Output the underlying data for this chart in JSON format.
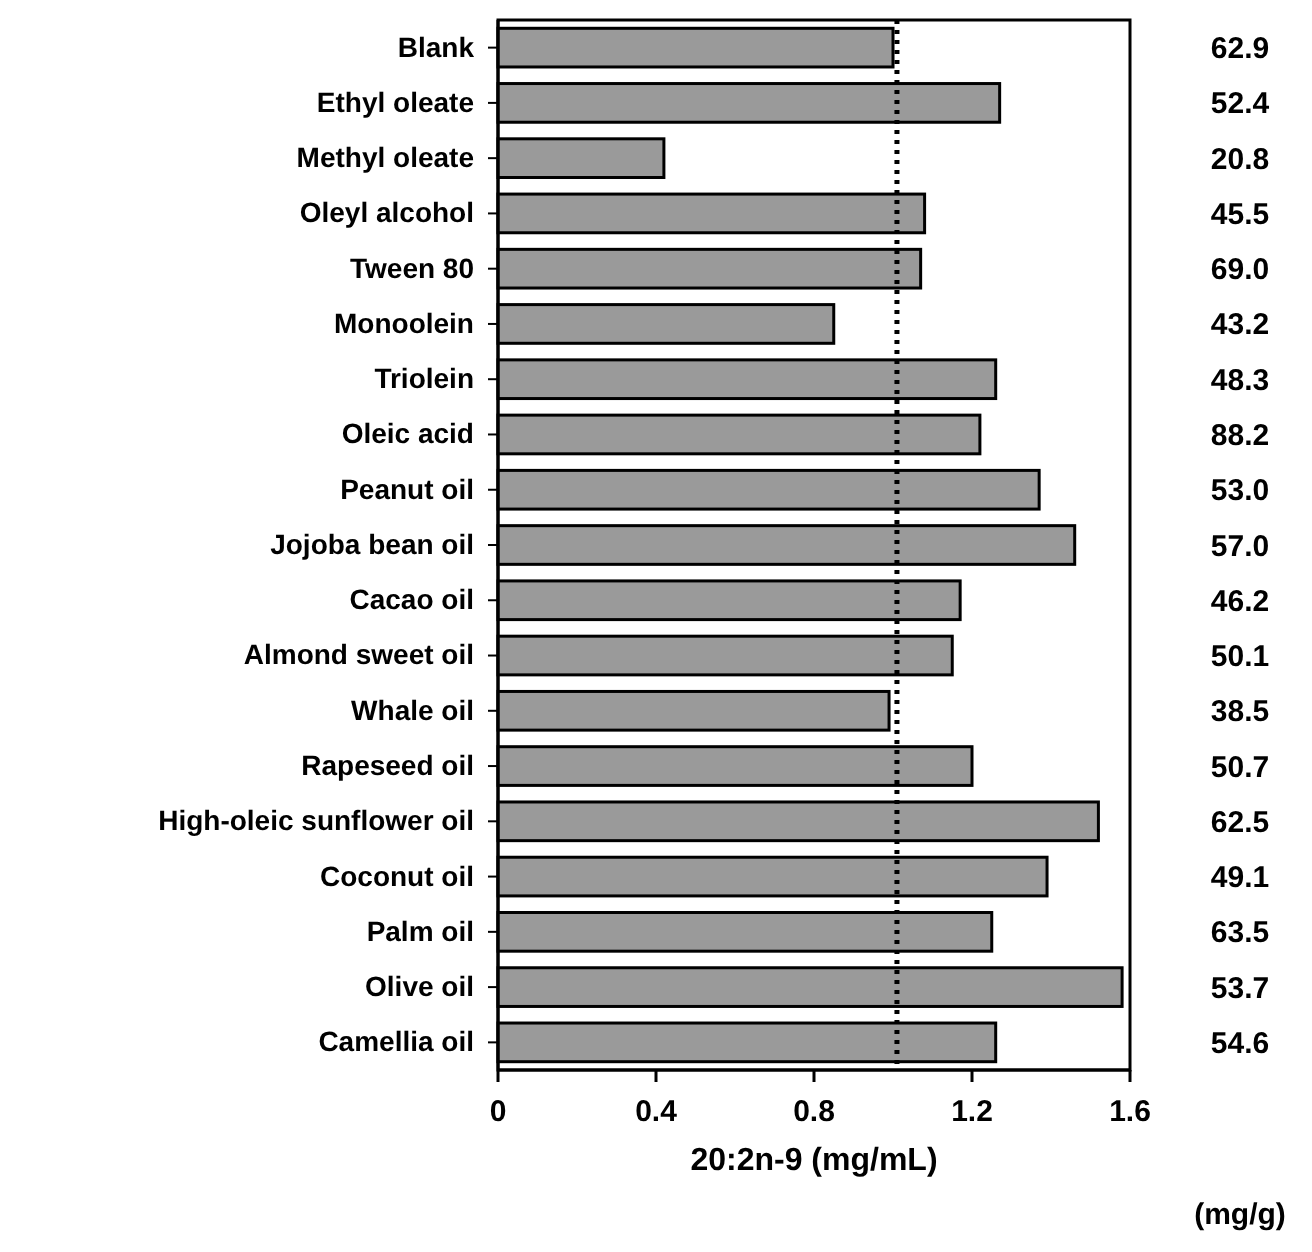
{
  "chart_data": {
    "type": "bar",
    "orientation": "horizontal",
    "categories": [
      "Blank",
      "Ethyl oleate",
      "Methyl oleate",
      "Oleyl alcohol",
      "Tween 80",
      "Monoolein",
      "Triolein",
      "Oleic acid",
      "Peanut oil",
      "Jojoba bean oil",
      "Cacao oil",
      "Almond sweet oil",
      "Whale oil",
      "Rapeseed oil",
      "High-oleic sunflower oil",
      "Coconut oil",
      "Palm oil",
      "Olive oil",
      "Camellia oil"
    ],
    "values": [
      1.0,
      1.27,
      0.42,
      1.08,
      1.07,
      0.85,
      1.26,
      1.22,
      1.37,
      1.46,
      1.17,
      1.15,
      0.99,
      1.2,
      1.52,
      1.39,
      1.25,
      1.58,
      1.26
    ],
    "color": "#9a9a9a",
    "xlim": [
      0,
      1.6
    ],
    "xticks": [
      0,
      0.4,
      0.8,
      1.2,
      1.6
    ],
    "xlabel": "20:2n-9 (mg/mL)",
    "ref_lines": [
      {
        "axis": "x",
        "value": 1.01,
        "line_style": "dotted",
        "color": "#000000"
      }
    ],
    "annotations": [
      "62.9",
      "52.4",
      "20.8",
      "45.5",
      "69.0",
      "43.2",
      "48.3",
      "88.2",
      "53.0",
      "57.0",
      "46.2",
      "50.1",
      "38.5",
      "50.7",
      "62.5",
      "49.1",
      "63.5",
      "53.7",
      "54.6",
      "(mg/g)"
    ]
  }
}
